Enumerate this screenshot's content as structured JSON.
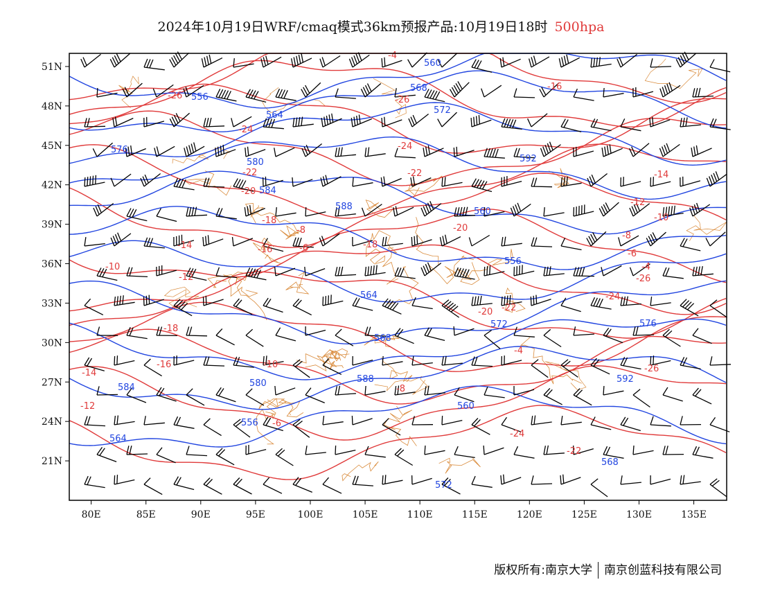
{
  "header": {
    "title": "2024年10月19日WRF/cmaq模式36km预报产品:10月19日18时",
    "level": "500hpa"
  },
  "footer": {
    "copyright": "版权所有:南京大学",
    "company": "南京创蓝科技有限公司"
  },
  "map": {
    "lon_range": [
      78,
      138
    ],
    "lat_range": [
      18,
      52
    ],
    "x_ticks": [
      "80E",
      "85E",
      "90E",
      "95E",
      "100E",
      "105E",
      "110E",
      "115E",
      "120E",
      "125E",
      "130E",
      "135E"
    ],
    "y_ticks": [
      "21N",
      "24N",
      "27N",
      "30N",
      "33N",
      "36N",
      "39N",
      "42N",
      "45N",
      "48N",
      "51N"
    ],
    "colors": {
      "height_contour": "#2145e0",
      "temperature_contour": "#e03a3a",
      "boundary": "#d98a3a",
      "wind_barb": "#000000"
    },
    "height_labels": [
      "560",
      "556",
      "564",
      "568",
      "572",
      "576",
      "580",
      "584",
      "588",
      "592"
    ],
    "temperature_labels": [
      "-26",
      "-24",
      "-22",
      "-20",
      "-18",
      "-16",
      "-14",
      "-12",
      "-10",
      "-8",
      "-6",
      "-4"
    ]
  }
}
